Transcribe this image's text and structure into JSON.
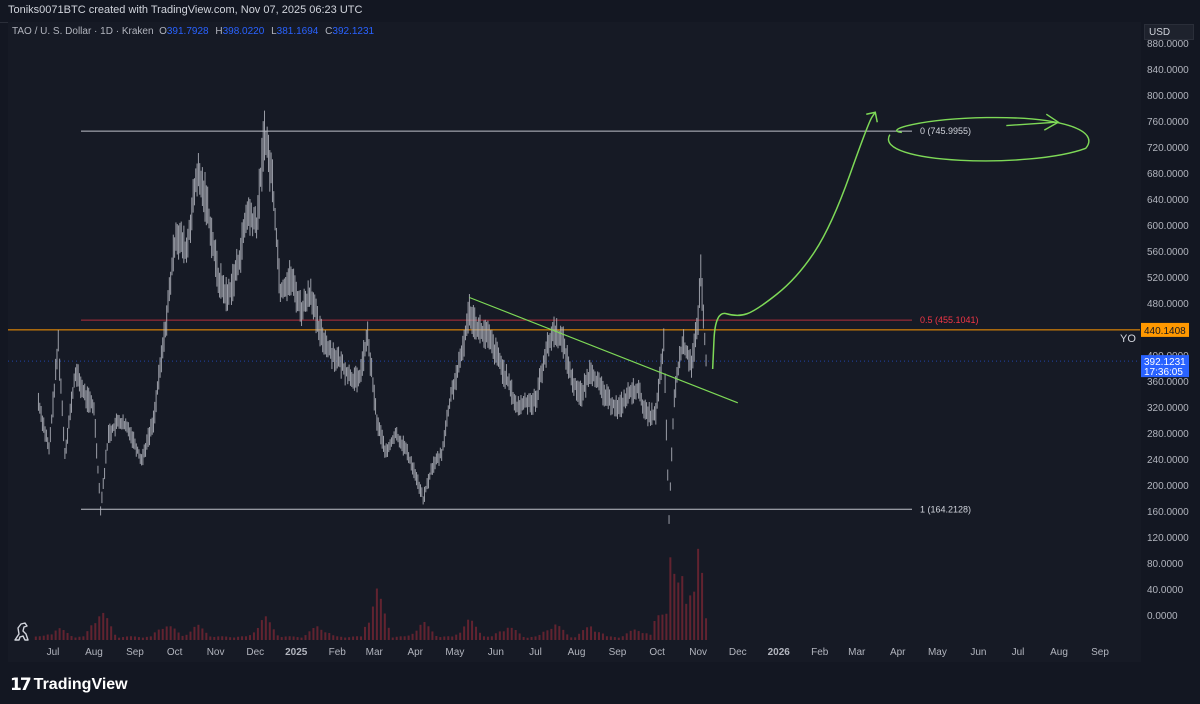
{
  "header": {
    "credit": "Toniks0071BTC created with TradingView.com, Nov 07, 2025 06:23 UTC"
  },
  "legend": {
    "symbol": "TAO / U. S. Dollar · 1D · Kraken",
    "o_label": "O",
    "o_value": "391.7928",
    "h_label": "H",
    "h_value": "398.0220",
    "l_label": "L",
    "l_value": "381.1694",
    "c_label": "C",
    "c_value": "392.1231"
  },
  "price_axis": {
    "currency": "USD",
    "ticks": [
      "880.0000",
      "840.0000",
      "800.0000",
      "760.0000",
      "720.0000",
      "680.0000",
      "640.0000",
      "600.0000",
      "560.0000",
      "520.0000",
      "480.0000",
      "440.0000",
      "400.0000",
      "360.0000",
      "320.0000",
      "280.0000",
      "240.0000",
      "200.0000",
      "160.0000",
      "120.0000",
      "80.0000",
      "40.0000",
      "0.0000"
    ],
    "orange_level_label": "440.1408",
    "current_price_label": "392.1231",
    "countdown_label": "17:36:05"
  },
  "time_axis": {
    "ticks": [
      "Jul",
      "Aug",
      "Sep",
      "Oct",
      "Nov",
      "Dec",
      "2025",
      "Feb",
      "Mar",
      "Apr",
      "May",
      "Jun",
      "Jul",
      "Aug",
      "Sep",
      "Oct",
      "Nov",
      "Dec",
      "2026",
      "Feb",
      "Mar",
      "Apr",
      "May",
      "Jun",
      "Jul",
      "Aug",
      "Sep"
    ]
  },
  "annotations": {
    "fib_0": "0 (745.9955)",
    "fib_05": "0.5 (455.1041)",
    "fib_1": "1 (164.2128)",
    "yo": "YO"
  },
  "brand": {
    "name": "TradingView"
  },
  "colors": {
    "background": "#161a25",
    "candle": "#b2b5be",
    "fib_line": "#d1d4dc",
    "mid_line": "#f23645",
    "orange_line": "#ff9800",
    "trendline": "#7ed957",
    "price_label_bg": "#2962ff",
    "volume": "#f23645"
  },
  "chart_data": {
    "type": "line",
    "x_type": "date",
    "title": "",
    "xlabel": "",
    "ylabel": "",
    "ylim": [
      -20,
      900
    ],
    "xlim": [
      "2024-06-15",
      "2026-09-30"
    ],
    "grid": false,
    "price_series": {
      "name": "",
      "points": [
        [
          "2024-06-20",
          330
        ],
        [
          "2024-06-28",
          255
        ],
        [
          "2024-07-05",
          420
        ],
        [
          "2024-07-10",
          250
        ],
        [
          "2024-07-18",
          375
        ],
        [
          "2024-07-25",
          340
        ],
        [
          "2024-08-01",
          320
        ],
        [
          "2024-08-06",
          165
        ],
        [
          "2024-08-12",
          280
        ],
        [
          "2024-08-20",
          300
        ],
        [
          "2024-08-28",
          285
        ],
        [
          "2024-09-06",
          240
        ],
        [
          "2024-09-15",
          300
        ],
        [
          "2024-09-25",
          460
        ],
        [
          "2024-10-02",
          590
        ],
        [
          "2024-10-10",
          560
        ],
        [
          "2024-10-18",
          680
        ],
        [
          "2024-10-25",
          640
        ],
        [
          "2024-11-03",
          520
        ],
        [
          "2024-11-10",
          490
        ],
        [
          "2024-11-18",
          540
        ],
        [
          "2024-11-25",
          620
        ],
        [
          "2024-12-02",
          600
        ],
        [
          "2024-12-08",
          745
        ],
        [
          "2024-12-14",
          670
        ],
        [
          "2024-12-20",
          500
        ],
        [
          "2024-12-28",
          520
        ],
        [
          "2025-01-05",
          470
        ],
        [
          "2025-01-12",
          500
        ],
        [
          "2025-01-18",
          440
        ],
        [
          "2025-01-26",
          410
        ],
        [
          "2025-02-03",
          390
        ],
        [
          "2025-02-10",
          370
        ],
        [
          "2025-02-17",
          360
        ],
        [
          "2025-02-24",
          430
        ],
        [
          "2025-03-03",
          300
        ],
        [
          "2025-03-10",
          250
        ],
        [
          "2025-03-17",
          280
        ],
        [
          "2025-03-24",
          260
        ],
        [
          "2025-03-31",
          225
        ],
        [
          "2025-04-07",
          180
        ],
        [
          "2025-04-14",
          230
        ],
        [
          "2025-04-21",
          250
        ],
        [
          "2025-04-28",
          340
        ],
        [
          "2025-05-05",
          390
        ],
        [
          "2025-05-12",
          470
        ],
        [
          "2025-05-19",
          440
        ],
        [
          "2025-05-26",
          430
        ],
        [
          "2025-06-02",
          400
        ],
        [
          "2025-06-10",
          360
        ],
        [
          "2025-06-17",
          320
        ],
        [
          "2025-06-24",
          330
        ],
        [
          "2025-07-01",
          330
        ],
        [
          "2025-07-08",
          400
        ],
        [
          "2025-07-15",
          440
        ],
        [
          "2025-07-22",
          420
        ],
        [
          "2025-07-29",
          360
        ],
        [
          "2025-08-05",
          340
        ],
        [
          "2025-08-12",
          380
        ],
        [
          "2025-08-19",
          350
        ],
        [
          "2025-08-26",
          330
        ],
        [
          "2025-09-02",
          320
        ],
        [
          "2025-09-09",
          340
        ],
        [
          "2025-09-16",
          350
        ],
        [
          "2025-09-23",
          310
        ],
        [
          "2025-09-30",
          310
        ],
        [
          "2025-10-06",
          420
        ],
        [
          "2025-10-10",
          150
        ],
        [
          "2025-10-14",
          340
        ],
        [
          "2025-10-20",
          420
        ],
        [
          "2025-10-27",
          390
        ],
        [
          "2025-11-01",
          450
        ],
        [
          "2025-11-03",
          530
        ],
        [
          "2025-11-07",
          392
        ]
      ]
    },
    "volume_series": {
      "name": "",
      "points": [
        [
          "2024-07-05",
          15
        ],
        [
          "2024-08-06",
          50
        ],
        [
          "2024-09-25",
          25
        ],
        [
          "2024-10-18",
          20
        ],
        [
          "2024-12-08",
          35
        ],
        [
          "2025-01-18",
          20
        ],
        [
          "2025-03-03",
          80
        ],
        [
          "2025-04-07",
          25
        ],
        [
          "2025-05-12",
          30
        ],
        [
          "2025-06-10",
          20
        ],
        [
          "2025-07-15",
          25
        ],
        [
          "2025-08-12",
          20
        ],
        [
          "2025-09-16",
          15
        ],
        [
          "2025-10-06",
          60
        ],
        [
          "2025-10-10",
          150
        ],
        [
          "2025-10-20",
          120
        ],
        [
          "2025-10-27",
          90
        ],
        [
          "2025-11-01",
          140
        ],
        [
          "2025-11-03",
          120
        ],
        [
          "2025-11-07",
          40
        ]
      ]
    },
    "horizontal_levels": [
      {
        "label": "0 (745.9955)",
        "value": 745.9955,
        "style": "fib"
      },
      {
        "label": "0.5 (455.1041)",
        "value": 455.1041,
        "style": "mid"
      },
      {
        "label": "1 (164.2128)",
        "value": 164.2128,
        "style": "fib"
      },
      {
        "label": "440.1408",
        "value": 440.1408,
        "style": "orange"
      }
    ],
    "trendline": [
      [
        "2025-05-12",
        490
      ],
      [
        "2025-12-01",
        328
      ]
    ],
    "projection_path": [
      [
        "2025-11-12",
        380
      ],
      [
        "2025-11-14",
        470
      ],
      [
        "2025-12-01",
        460
      ],
      [
        "2025-12-15",
        470
      ],
      [
        "2026-01-15",
        520
      ],
      [
        "2026-02-10",
        600
      ],
      [
        "2026-03-10",
        760
      ],
      [
        "2026-03-15",
        775
      ]
    ],
    "target_ellipse": {
      "x_from": "2026-03-20",
      "x_to": "2026-08-25",
      "y_center": 730,
      "y_spread": 35
    }
  }
}
